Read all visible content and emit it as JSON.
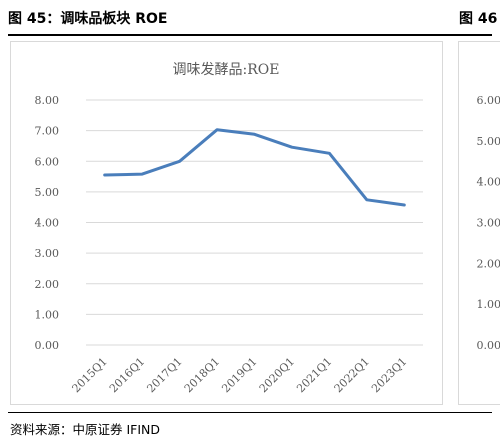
{
  "header": {
    "left_title": "图 45：调味品板块 ROE",
    "right_title": "图 46"
  },
  "footer": {
    "source": "资料来源：中原证券 IFIND"
  },
  "chart_data": [
    {
      "type": "line",
      "title": "调味发酵品:ROE",
      "categories": [
        "2015Q1",
        "2016Q1",
        "2017Q1",
        "2018Q1",
        "2019Q1",
        "2020Q1",
        "2021Q1",
        "2022Q1",
        "2023Q1"
      ],
      "series": [
        {
          "values": [
            5.55,
            5.58,
            6.0,
            7.03,
            6.88,
            6.46,
            6.26,
            4.74,
            4.57
          ],
          "color": "#4a7ebb"
        }
      ],
      "ylim": [
        0,
        8
      ],
      "yticks": [
        "0.00",
        "1.00",
        "2.00",
        "3.00",
        "4.00",
        "5.00",
        "6.00",
        "7.00",
        "8.00"
      ],
      "grid": true
    },
    {
      "type": "line",
      "partial": true,
      "yticks": [
        "0.00",
        "1.00",
        "2.00",
        "3.00",
        "4.00",
        "5.00",
        "6.00"
      ],
      "grid": true
    }
  ]
}
